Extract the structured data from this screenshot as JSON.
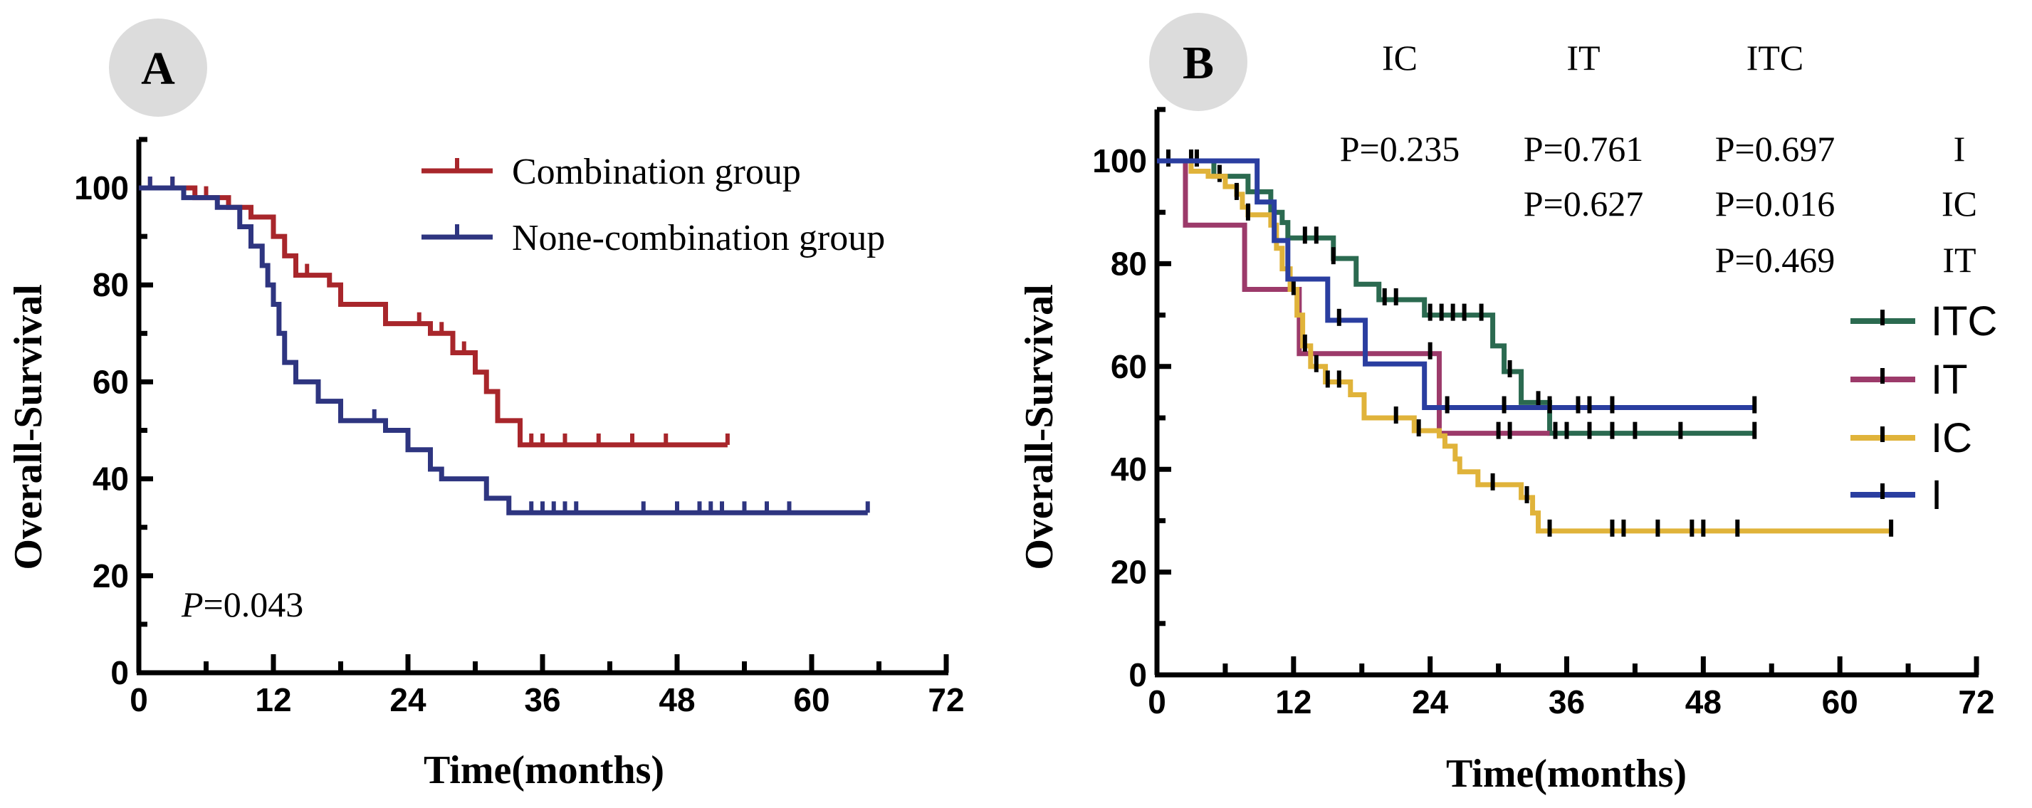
{
  "chart_data": [
    {
      "panel": "A",
      "type": "line",
      "subtype": "kaplan-meier",
      "xlabel": "Time(months)",
      "ylabel": "Overall-Survival",
      "xlim": [
        0,
        72
      ],
      "ylim": [
        0,
        110
      ],
      "xticks": [
        0,
        12,
        24,
        36,
        48,
        60,
        72
      ],
      "yticks": [
        0,
        20,
        40,
        60,
        80,
        100
      ],
      "annotation": {
        "p_label": "P",
        "p_value": "=0.043"
      },
      "legend_position": "top-right",
      "series": [
        {
          "name": "Combination group",
          "color": "#a8262b",
          "steps": [
            [
              0,
              100
            ],
            [
              5,
              98
            ],
            [
              8,
              96
            ],
            [
              10,
              94
            ],
            [
              12,
              90
            ],
            [
              13,
              86
            ],
            [
              14,
              82
            ],
            [
              17,
              80
            ],
            [
              18,
              76
            ],
            [
              22,
              72
            ],
            [
              26,
              70
            ],
            [
              28,
              66
            ],
            [
              30,
              62
            ],
            [
              31,
              58
            ],
            [
              32,
              52
            ],
            [
              34,
              47
            ]
          ],
          "end": 52.5,
          "censored": [
            1,
            3,
            6,
            13,
            15,
            25,
            27,
            29,
            30,
            31,
            35,
            36,
            38,
            41,
            44,
            47,
            52.5
          ]
        },
        {
          "name": "None-combination group",
          "color": "#2e3580",
          "steps": [
            [
              0,
              100
            ],
            [
              4,
              98
            ],
            [
              7,
              96
            ],
            [
              9,
              92
            ],
            [
              10,
              88
            ],
            [
              11,
              84
            ],
            [
              11.5,
              80
            ],
            [
              12,
              76
            ],
            [
              12.5,
              70
            ],
            [
              13,
              64
            ],
            [
              14,
              60
            ],
            [
              16,
              56
            ],
            [
              18,
              52
            ],
            [
              22,
              50
            ],
            [
              24,
              46
            ],
            [
              26,
              42
            ],
            [
              27,
              40
            ],
            [
              31,
              36
            ],
            [
              33,
              33
            ]
          ],
          "end": 65,
          "censored": [
            1,
            3,
            9,
            21,
            27,
            35,
            36,
            37,
            38,
            39,
            45,
            48,
            50,
            51,
            52,
            54,
            56,
            58,
            65
          ]
        }
      ]
    },
    {
      "panel": "B",
      "type": "line",
      "subtype": "kaplan-meier",
      "xlabel": "Time(months)",
      "ylabel": "Overall-Survival",
      "xlim": [
        0,
        72
      ],
      "ylim": [
        0,
        110
      ],
      "xticks": [
        0,
        12,
        24,
        36,
        48,
        60,
        72
      ],
      "yticks": [
        0,
        20,
        40,
        60,
        80,
        100
      ],
      "legend_position": "right",
      "pvalue_table": {
        "columns": [
          "IC",
          "IT",
          "ITC"
        ],
        "rows": [
          {
            "label": "I",
            "values": [
              "P=0.235",
              "P=0.761",
              "P=0.697"
            ]
          },
          {
            "label": "IC",
            "values": [
              "",
              "P=0.627",
              "P=0.016"
            ]
          },
          {
            "label": "IT",
            "values": [
              "",
              "",
              "P=0.469"
            ]
          }
        ]
      },
      "series": [
        {
          "name": "ITC",
          "color": "#2b6a50",
          "steps": [
            [
              0,
              100
            ],
            [
              5,
              97
            ],
            [
              8,
              94
            ],
            [
              10,
              90
            ],
            [
              11,
              88
            ],
            [
              11.5,
              85
            ],
            [
              15.5,
              81
            ],
            [
              17.5,
              76
            ],
            [
              19.5,
              73
            ],
            [
              23.5,
              70
            ],
            [
              29.5,
              64
            ],
            [
              30.5,
              59
            ],
            [
              32,
              53
            ],
            [
              34.5,
              47
            ]
          ],
          "end": 52.5,
          "censored": [
            1,
            3,
            3.5,
            5.5,
            13,
            14,
            15.5,
            20,
            21,
            24,
            25,
            26,
            27,
            28.5,
            31,
            33.5,
            35,
            36,
            38,
            40,
            42,
            46,
            52.5
          ]
        },
        {
          "name": "IT",
          "color": "#9c3a6a",
          "steps": [
            [
              0,
              100
            ],
            [
              2.5,
              87.5
            ],
            [
              7.7,
              75
            ],
            [
              12.5,
              62.5
            ],
            [
              24.8,
              47
            ]
          ],
          "end": 34.5,
          "censored": [
            24,
            30,
            31
          ]
        },
        {
          "name": "IC",
          "color": "#e0b33a",
          "steps": [
            [
              0,
              100
            ],
            [
              3,
              98
            ],
            [
              4.5,
              97
            ],
            [
              6,
              95
            ],
            [
              7,
              93.5
            ],
            [
              7.5,
              91
            ],
            [
              8,
              89.5
            ],
            [
              10,
              87.5
            ],
            [
              10.5,
              83
            ],
            [
              11,
              79
            ],
            [
              11.7,
              75
            ],
            [
              12.3,
              70
            ],
            [
              12.8,
              64
            ],
            [
              13.5,
              60
            ],
            [
              14.8,
              57
            ],
            [
              17,
              54.5
            ],
            [
              18.2,
              50
            ],
            [
              22.6,
              47.5
            ],
            [
              24.8,
              46.5
            ],
            [
              25.3,
              44.5
            ],
            [
              26.2,
              42
            ],
            [
              26.6,
              39.5
            ],
            [
              28.2,
              37
            ],
            [
              32,
              34.5
            ],
            [
              33,
              31.5
            ],
            [
              33.5,
              28
            ]
          ],
          "end": 64.5,
          "censored": [
            7,
            8,
            12,
            13,
            14,
            15,
            16,
            21,
            23,
            29.5,
            32.5,
            34.5,
            40,
            41,
            44,
            47,
            48,
            51,
            64.5
          ]
        },
        {
          "name": "I",
          "color": "#2a3ea0",
          "steps": [
            [
              0,
              100
            ],
            [
              8.8,
              92
            ],
            [
              10.3,
              84.5
            ],
            [
              11.5,
              77
            ],
            [
              15,
              69
            ],
            [
              18.3,
              60.5
            ],
            [
              23.5,
              52
            ]
          ],
          "end": 52.5,
          "censored": [
            16,
            25.5,
            30.5,
            34.5,
            37,
            38,
            40,
            52.5
          ]
        }
      ]
    }
  ]
}
